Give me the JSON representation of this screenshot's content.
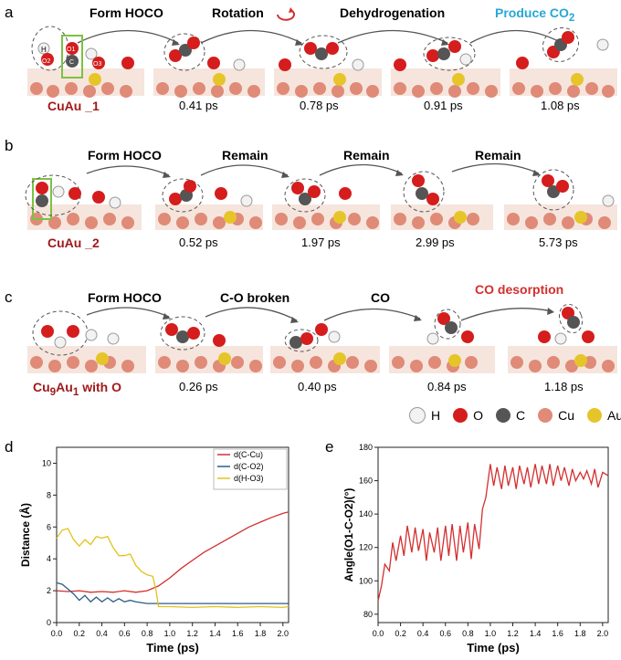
{
  "panels": {
    "a": {
      "letter": "a",
      "system": "CuAu _1",
      "steps": [
        "Form HOCO",
        "Rotation",
        "Dehydrogenation",
        "Produce CO"
      ],
      "produce_sub": "2",
      "times": [
        "0.41 ps",
        "0.78 ps",
        "0.91 ps",
        "1.08 ps"
      ],
      "atom_labels": [
        "H",
        "O2",
        "O1",
        "C",
        "O3"
      ]
    },
    "b": {
      "letter": "b",
      "system": "CuAu _2",
      "steps": [
        "Form HOCO",
        "Remain",
        "Remain",
        "Remain"
      ],
      "times": [
        "0.52 ps",
        "1.97 ps",
        "2.99 ps",
        "5.73 ps"
      ]
    },
    "c": {
      "letter": "c",
      "system_pre": "Cu",
      "system_sub1": "9",
      "system_mid": "Au",
      "system_sub2": "1",
      "system_post": " with O",
      "steps": [
        "Form HOCO",
        "C-O broken",
        "CO",
        "CO desorption"
      ],
      "times": [
        "0.26 ps",
        "0.40 ps",
        "0.84 ps",
        "1.18 ps"
      ]
    },
    "legend": [
      "H",
      "O",
      "C",
      "Cu",
      "Au"
    ],
    "d": {
      "letter": "d",
      "xlabel": "Time (ps)",
      "ylabel": "Distance (Å)"
    },
    "e": {
      "letter": "e",
      "xlabel": "Time (ps)",
      "ylabel": "Angle(O1-C-O2)(°)"
    }
  },
  "colors": {
    "H": "#f2f2f2",
    "O": "#d51d1d",
    "C": "#555555",
    "Cu": "#e08a78",
    "Au": "#e6c52a",
    "red_line": "#d32f2f",
    "blue_line": "#2b5c8a",
    "yellow_line": "#e3c21c",
    "title_red": "#a01a1a",
    "title_cyan": "#25a7d6",
    "desorption_red": "#d32f2f"
  },
  "chart_data": [
    {
      "type": "line",
      "title": "",
      "xlabel": "Time (ps)",
      "ylabel": "Distance (Å)",
      "xlim": [
        0,
        2.05
      ],
      "ylim": [
        0,
        11
      ],
      "xticks": [
        "0.0",
        "0.2",
        "0.4",
        "0.6",
        "0.8",
        "1.0",
        "1.2",
        "1.4",
        "1.6",
        "1.8",
        "2.0"
      ],
      "yticks": [
        "0",
        "2",
        "4",
        "6",
        "8",
        "10"
      ],
      "legend_position": "top-right",
      "series": [
        {
          "name": "d(C-Cu)",
          "color": "#d32f2f",
          "x": [
            0.0,
            0.1,
            0.2,
            0.3,
            0.4,
            0.5,
            0.6,
            0.7,
            0.8,
            0.9,
            1.0,
            1.1,
            1.2,
            1.3,
            1.4,
            1.5,
            1.6,
            1.7,
            1.8,
            1.9,
            2.0,
            2.05
          ],
          "y": [
            2.0,
            1.95,
            2.0,
            1.9,
            1.95,
            1.9,
            2.0,
            1.9,
            2.0,
            2.3,
            2.8,
            3.4,
            3.9,
            4.4,
            4.8,
            5.2,
            5.6,
            6.0,
            6.3,
            6.6,
            6.85,
            6.95
          ]
        },
        {
          "name": "d(C-O2)",
          "color": "#2b5c8a",
          "x": [
            0.0,
            0.05,
            0.1,
            0.15,
            0.2,
            0.25,
            0.3,
            0.35,
            0.4,
            0.45,
            0.5,
            0.55,
            0.6,
            0.65,
            0.7,
            0.8,
            0.9,
            1.0,
            1.2,
            1.4,
            1.6,
            1.8,
            2.0,
            2.05
          ],
          "y": [
            2.5,
            2.4,
            2.1,
            1.8,
            1.4,
            1.7,
            1.3,
            1.6,
            1.3,
            1.55,
            1.3,
            1.5,
            1.3,
            1.4,
            1.3,
            1.2,
            1.2,
            1.2,
            1.2,
            1.2,
            1.2,
            1.2,
            1.2,
            1.2
          ]
        },
        {
          "name": "d(H-O3)",
          "color": "#e3c21c",
          "x": [
            0.0,
            0.05,
            0.1,
            0.15,
            0.2,
            0.25,
            0.3,
            0.35,
            0.4,
            0.45,
            0.5,
            0.55,
            0.6,
            0.65,
            0.7,
            0.75,
            0.8,
            0.85,
            0.88,
            0.9,
            1.0,
            1.2,
            1.4,
            1.6,
            1.8,
            2.0,
            2.05
          ],
          "y": [
            5.3,
            5.8,
            5.9,
            5.2,
            4.8,
            5.2,
            4.9,
            5.4,
            5.3,
            5.4,
            4.7,
            4.2,
            4.2,
            4.3,
            3.6,
            3.2,
            3.0,
            2.9,
            2.0,
            1.0,
            1.0,
            0.95,
            1.0,
            0.95,
            1.0,
            0.95,
            1.0
          ]
        }
      ]
    },
    {
      "type": "line",
      "title": "",
      "xlabel": "Time (ps)",
      "ylabel": "Angle(O1-C-O2)(°)",
      "xlim": [
        0,
        2.05
      ],
      "ylim": [
        75,
        180
      ],
      "xticks": [
        "0.0",
        "0.2",
        "0.4",
        "0.6",
        "0.8",
        "1.0",
        "1.2",
        "1.4",
        "1.6",
        "1.8",
        "2.0"
      ],
      "yticks": [
        "80",
        "100",
        "120",
        "140",
        "160",
        "180"
      ],
      "series": [
        {
          "name": "",
          "color": "#d32f2f",
          "x": [
            0.0,
            0.03,
            0.06,
            0.1,
            0.13,
            0.16,
            0.2,
            0.23,
            0.26,
            0.3,
            0.33,
            0.36,
            0.4,
            0.43,
            0.46,
            0.5,
            0.53,
            0.56,
            0.6,
            0.63,
            0.66,
            0.7,
            0.73,
            0.76,
            0.8,
            0.83,
            0.86,
            0.9,
            0.93,
            0.96,
            1.0,
            1.03,
            1.06,
            1.1,
            1.13,
            1.16,
            1.2,
            1.23,
            1.26,
            1.3,
            1.33,
            1.36,
            1.4,
            1.43,
            1.46,
            1.5,
            1.53,
            1.56,
            1.6,
            1.63,
            1.66,
            1.7,
            1.73,
            1.76,
            1.8,
            1.83,
            1.86,
            1.9,
            1.93,
            1.96,
            2.0,
            2.05
          ],
          "y": [
            88,
            97,
            110,
            106,
            123,
            112,
            127,
            115,
            133,
            117,
            132,
            118,
            131,
            112,
            129,
            117,
            132,
            112,
            133,
            115,
            134,
            112,
            133,
            117,
            135,
            113,
            134,
            119,
            143,
            150,
            170,
            157,
            168,
            155,
            169,
            157,
            168,
            155,
            169,
            158,
            168,
            156,
            170,
            158,
            169,
            158,
            170,
            157,
            169,
            160,
            168,
            157,
            167,
            160,
            165,
            161,
            166,
            158,
            167,
            156,
            165,
            163
          ]
        }
      ]
    }
  ]
}
